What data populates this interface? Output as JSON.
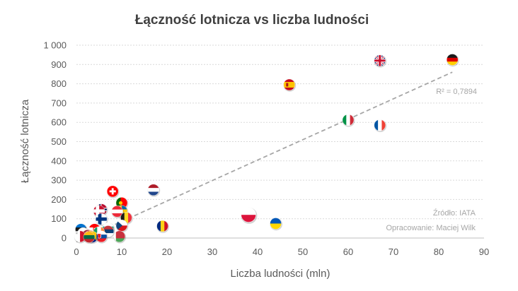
{
  "chart_data": {
    "type": "scatter",
    "title": "Łączność lotnicza vs liczba ludności",
    "xlabel": "Liczba ludności (mln)",
    "ylabel": "Łączność lotnicza",
    "xlim": [
      0,
      90
    ],
    "ylim": [
      0,
      1000
    ],
    "x_ticks": [
      0,
      10,
      20,
      30,
      40,
      50,
      60,
      70,
      80,
      90
    ],
    "y_ticks": [
      0,
      100,
      200,
      300,
      400,
      500,
      600,
      700,
      800,
      900,
      1000
    ],
    "x_tick_labels": [
      "0",
      "10",
      "20",
      "30",
      "40",
      "50",
      "60",
      "70",
      "80",
      "90"
    ],
    "y_tick_labels": [
      "0",
      "100",
      "200",
      "300",
      "400",
      "500",
      "600",
      "700",
      "800",
      "900",
      "1 000"
    ],
    "grid": "horizontal dashed",
    "trendline": {
      "style": "dashed",
      "color": "#a6a6a6",
      "x": [
        0,
        83
      ],
      "y": [
        -20,
        860
      ],
      "label": "R² = 0,7894"
    },
    "annotations": [
      "Źródło: IATA",
      "Opracowanie: Maciej Wilk"
    ],
    "points": [
      {
        "x": 83,
        "y": 925,
        "marker": "flag-de"
      },
      {
        "x": 67,
        "y": 920,
        "marker": "flag-uk"
      },
      {
        "x": 47,
        "y": 795,
        "marker": "flag-es"
      },
      {
        "x": 60,
        "y": 612,
        "marker": "flag-it"
      },
      {
        "x": 67,
        "y": 585,
        "marker": "flag-fr"
      },
      {
        "x": 17,
        "y": 250,
        "marker": "flag-nl"
      },
      {
        "x": 8,
        "y": 242,
        "marker": "flag-ch"
      },
      {
        "x": 10,
        "y": 182,
        "marker": "flag-pt"
      },
      {
        "x": 5.5,
        "y": 148,
        "marker": "flag-no"
      },
      {
        "x": 5,
        "y": 140,
        "marker": "flag-dk"
      },
      {
        "x": 10,
        "y": 140,
        "marker": "flag-se"
      },
      {
        "x": 9,
        "y": 138,
        "marker": "flag-at"
      },
      {
        "x": 11,
        "y": 105,
        "marker": "flag-be"
      },
      {
        "x": 5.5,
        "y": 98,
        "marker": "flag-fi"
      },
      {
        "x": 38,
        "y": 120,
        "marker": "flag-pl"
      },
      {
        "x": 44,
        "y": 75,
        "marker": "flag-ua"
      },
      {
        "x": 19,
        "y": 62,
        "marker": "flag-ro"
      },
      {
        "x": 10,
        "y": 65,
        "marker": "flag-cz"
      },
      {
        "x": 7,
        "y": 50,
        "marker": "flag-bg"
      },
      {
        "x": 4,
        "y": 45,
        "marker": "flag-hr"
      },
      {
        "x": 1,
        "y": 45,
        "marker": "flag-ee"
      },
      {
        "x": 7,
        "y": 35,
        "marker": "flag-rs"
      },
      {
        "x": 5,
        "y": 30,
        "marker": "flag-ie"
      },
      {
        "x": 1.5,
        "y": 25,
        "marker": "flag-cy"
      },
      {
        "x": 2,
        "y": 18,
        "marker": "flag-si"
      },
      {
        "x": 2.5,
        "y": 14,
        "marker": "flag-lv"
      },
      {
        "x": 3,
        "y": 10,
        "marker": "flag-mk"
      },
      {
        "x": 0.8,
        "y": 8,
        "marker": "flag-mt"
      },
      {
        "x": 5.5,
        "y": 8,
        "marker": "flag-sk"
      },
      {
        "x": 9.5,
        "y": 8,
        "marker": "flag-by"
      },
      {
        "x": 3.5,
        "y": 6,
        "marker": "flag-ba"
      },
      {
        "x": 2.8,
        "y": 5,
        "marker": "flag-lt"
      }
    ]
  }
}
